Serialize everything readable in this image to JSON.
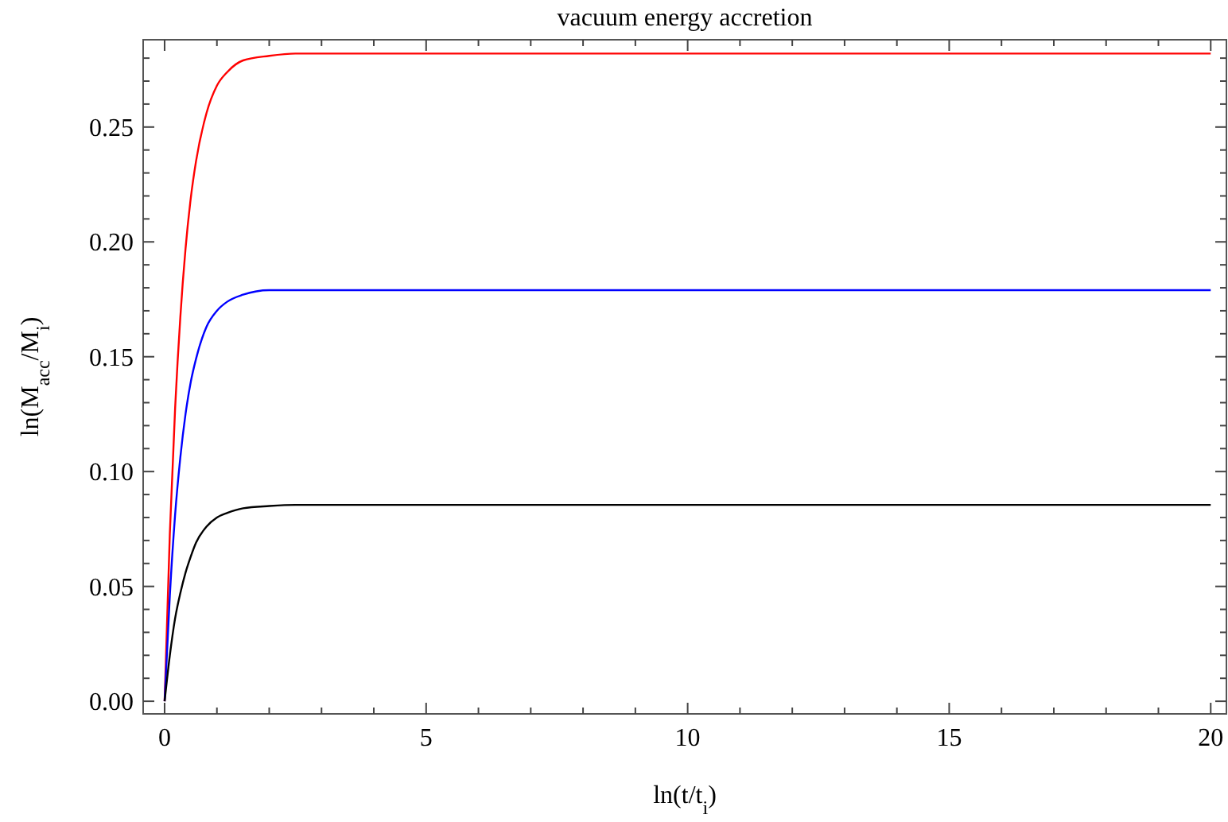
{
  "chart_data": {
    "type": "line",
    "title": "vacuum energy accretion",
    "xlabel": "ln(t/t$_{i}$)",
    "ylabel": "ln(M$_{acc}$/M$_{i}$)",
    "xlim": [
      -0.41,
      20.3
    ],
    "ylim": [
      -0.0055,
      0.288
    ],
    "xticks": [
      0,
      {
        "value": 1,
        "label": null
      },
      {
        "value": 2,
        "label": null
      },
      {
        "value": 3,
        "label": null
      },
      {
        "value": 4,
        "label": null
      },
      5,
      {
        "value": 6,
        "label": null
      },
      {
        "value": 7,
        "label": null
      },
      {
        "value": 8,
        "label": null
      },
      {
        "value": 9,
        "label": null
      },
      10,
      {
        "value": 11,
        "label": null
      },
      {
        "value": 12,
        "label": null
      },
      {
        "value": 13,
        "label": null
      },
      {
        "value": 14,
        "label": null
      },
      15,
      {
        "value": 16,
        "label": null
      },
      {
        "value": 17,
        "label": null
      },
      {
        "value": 18,
        "label": null
      },
      {
        "value": 19,
        "label": null
      },
      20
    ],
    "yticks": [
      {
        "value": 0,
        "label": "0.00"
      },
      {
        "value": 0.01,
        "label": null
      },
      {
        "value": 0.02,
        "label": null
      },
      {
        "value": 0.03,
        "label": null
      },
      {
        "value": 0.04,
        "label": null
      },
      {
        "value": 0.05,
        "label": "0.05"
      },
      {
        "value": 0.06,
        "label": null
      },
      {
        "value": 0.07,
        "label": null
      },
      {
        "value": 0.08,
        "label": null
      },
      {
        "value": 0.09,
        "label": null
      },
      {
        "value": 0.1,
        "label": "0.10"
      },
      {
        "value": 0.11,
        "label": null
      },
      {
        "value": 0.12,
        "label": null
      },
      {
        "value": 0.13,
        "label": null
      },
      {
        "value": 0.14,
        "label": null
      },
      {
        "value": 0.15,
        "label": "0.15"
      },
      {
        "value": 0.16,
        "label": null
      },
      {
        "value": 0.17,
        "label": null
      },
      {
        "value": 0.18,
        "label": null
      },
      {
        "value": 0.19,
        "label": null
      },
      {
        "value": 0.2,
        "label": "0.20"
      },
      {
        "value": 0.21,
        "label": null
      },
      {
        "value": 0.22,
        "label": null
      },
      {
        "value": 0.23,
        "label": null
      },
      {
        "value": 0.24,
        "label": null
      },
      {
        "value": 0.25,
        "label": "0.25"
      },
      {
        "value": 0.26,
        "label": null
      },
      {
        "value": 0.27,
        "label": null
      },
      {
        "value": 0.28,
        "label": null
      }
    ],
    "x": [
      0,
      0.1,
      0.2,
      0.3,
      0.4,
      0.5,
      0.6,
      0.8,
      1.0,
      1.2,
      1.5,
      2,
      2.5,
      3,
      4,
      20
    ],
    "line_style": "solid",
    "series": [
      {
        "color": "#ff0000",
        "values": [
          0,
          0.073,
          0.127,
          0.167,
          0.197,
          0.219,
          0.235,
          0.256,
          0.268,
          0.274,
          0.279,
          0.281,
          0.282,
          0.282,
          0.282,
          0.282
        ]
      },
      {
        "color": "#0000ff",
        "values": [
          0,
          0.046,
          0.081,
          0.106,
          0.125,
          0.139,
          0.149,
          0.163,
          0.17,
          0.174,
          0.177,
          0.179,
          0.179,
          0.179,
          0.179,
          0.179
        ]
      },
      {
        "color": "#000000",
        "values": [
          0,
          0.02,
          0.036,
          0.047,
          0.056,
          0.063,
          0.069,
          0.076,
          0.08,
          0.082,
          0.084,
          0.085,
          0.0855,
          0.0855,
          0.0855,
          0.0855
        ]
      }
    ]
  }
}
